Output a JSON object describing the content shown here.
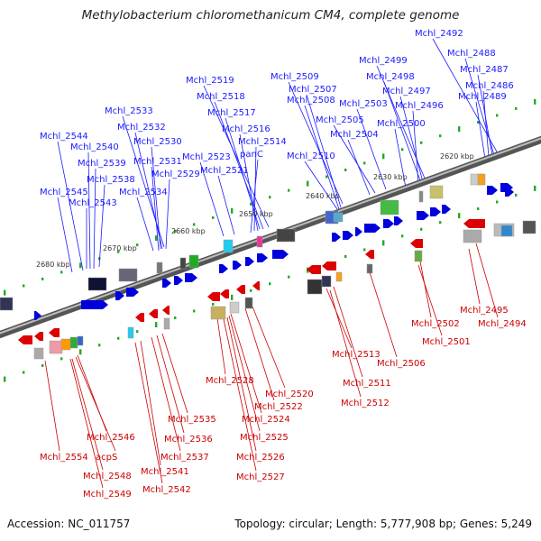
{
  "title": "Methylobacterium chloromethanicum CM4, complete genome",
  "footer": {
    "accession": "Accession: NC_011757",
    "summary": "Topology: circular; Length: 5,777,908 bp; Genes: 5,249"
  },
  "colors": {
    "forward": "#0000dd",
    "reverse": "#dd0000",
    "forward_label": "#1a1aff",
    "reverse_label": "#cc0000",
    "backbone": "#808080",
    "tick": "#22aa22",
    "kbp_label": "#333333"
  },
  "kbp_ticks": [
    "2620 kbp",
    "2630 kbp",
    "2640 kbp",
    "2650 kbp",
    "2660 kbp",
    "2670 kbp",
    "2680 kbp"
  ],
  "forward_genes": [
    "Mchl_2492",
    "Mchl_2488",
    "Mchl_2487",
    "Mchl_2486",
    "Mchl_2489",
    "Mchl_2499",
    "Mchl_2498",
    "Mchl_2497",
    "Mchl_2496",
    "Mchl_2500",
    "Mchl_2503",
    "Mchl_2505",
    "Mchl_2504",
    "Mchl_2509",
    "Mchl_2507",
    "Mchl_2508",
    "Mchl_2510",
    "Mchl_2519",
    "Mchl_2518",
    "Mchl_2517",
    "Mchl_2516",
    "Mchl_2514",
    "panC",
    "Mchl_2523",
    "Mchl_2521",
    "Mchl_2533",
    "Mchl_2532",
    "Mchl_2530",
    "Mchl_2531",
    "Mchl_2529",
    "Mchl_2534",
    "Mchl_2544",
    "Mchl_2540",
    "Mchl_2539",
    "Mchl_2538",
    "Mchl_2545",
    "Mchl_2543"
  ],
  "reverse_genes": [
    "Mchl_2495",
    "Mchl_2494",
    "Mchl_2502",
    "Mchl_2501",
    "Mchl_2506",
    "Mchl_2513",
    "Mchl_2511",
    "Mchl_2512",
    "Mchl_2520",
    "Mchl_2522",
    "Mchl_2528",
    "Mchl_2524",
    "Mchl_2525",
    "Mchl_2526",
    "Mchl_2527",
    "Mchl_2535",
    "Mchl_2536",
    "Mchl_2537",
    "Mchl_2541",
    "Mchl_2542",
    "Mchl_2546",
    "acpS",
    "Mchl_2548",
    "Mchl_2549",
    "Mchl_2554"
  ]
}
